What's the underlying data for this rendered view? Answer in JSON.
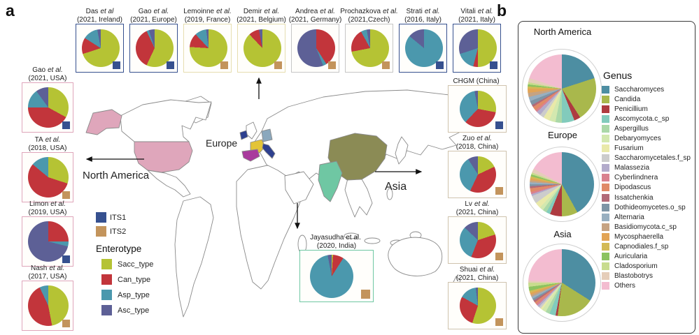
{
  "panels": {
    "a": "a",
    "b": "b"
  },
  "map": {
    "labels": {
      "europe": "Europe",
      "north_america": "North America",
      "asia": "Asia"
    },
    "countries": {
      "outline": "#8a8a8a",
      "usa": "#dfa6bb",
      "alaska": "#dfa6bb",
      "china": "#8b8b55",
      "india": "#6fc7a3",
      "france": "#e3c438",
      "germany": "#8ba8bd",
      "spain": "#a93a9d",
      "italy": "#2e408f",
      "ireland": "#2e408f"
    }
  },
  "legend": {
    "its_items": [
      {
        "label": "ITS1",
        "color": "#36508f"
      },
      {
        "label": "ITS2",
        "color": "#c3945c"
      }
    ],
    "enterotype_title": "Enterotype",
    "enterotype_items": [
      {
        "label": "Sacc_type",
        "color": "#b5c334"
      },
      {
        "label": "Can_type",
        "color": "#c2353b"
      },
      {
        "label": "Asp_type",
        "color": "#4b98ad"
      },
      {
        "label": "Asc_type",
        "color": "#5d6096"
      }
    ]
  },
  "chart_data": {
    "type": "pie",
    "enterotype_categories": [
      "Sacc_type",
      "Can_type",
      "Asp_type",
      "Asc_type"
    ],
    "study_pies": {
      "top": [
        {
          "author": "Das",
          "etal": "et al",
          "detail": "(2021, Ireland)",
          "marker": "ITS1",
          "border": "#36508f",
          "values": [
            70,
            14,
            13,
            3
          ]
        },
        {
          "author": "Gao",
          "etal": "et al.",
          "detail": "(2021, Europe)",
          "marker": "ITS1",
          "border": "#36508f",
          "values": [
            57,
            36,
            2,
            5
          ]
        },
        {
          "author": "Lemoinne",
          "etal": "et al.",
          "detail": "(2019, France)",
          "marker": "ITS2",
          "border": "#e6deb0",
          "values": [
            76,
            12,
            10,
            2
          ]
        },
        {
          "author": "Demir",
          "etal": "et al.",
          "detail": "(2021, Belgium)",
          "marker": "ITS2",
          "border": "#e6deb0",
          "values": [
            88,
            9,
            0,
            3
          ]
        },
        {
          "author": "Andrea",
          "etal": "et al.",
          "detail": "(2021, Germany)",
          "marker": "ITS2",
          "border": "#c6c6c6",
          "values": [
            0,
            41,
            3,
            56
          ]
        },
        {
          "author": "Prochazkova",
          "etal": "et al.",
          "detail": "(2021,Czech)",
          "marker": "ITS2",
          "border": "#c6c6c6",
          "values": [
            72,
            20,
            5,
            3
          ]
        },
        {
          "author": "Strati",
          "etal": "et al.",
          "detail": "(2016, Italy)",
          "marker": "ITS1",
          "border": "#36508f",
          "values": [
            0,
            0,
            86,
            14
          ]
        },
        {
          "author": "Vitali",
          "etal": "et al.",
          "detail": "(2021, Italy)",
          "marker": "ITS1",
          "border": "#36508f",
          "values": [
            50,
            4,
            16,
            30
          ]
        }
      ],
      "left": [
        {
          "author": "Gao",
          "etal": "et al.",
          "detail": "(2021, USA)",
          "marker": "ITS1",
          "border": "#dfa6bb",
          "values": [
            33,
            42,
            15,
            10
          ]
        },
        {
          "author": "TA",
          "etal": "et al.",
          "detail": "(2018, USA)",
          "marker": "ITS2",
          "border": "#dfa6bb",
          "values": [
            30,
            56,
            14,
            0
          ]
        },
        {
          "author": "Limon",
          "etal": "et al.",
          "detail": "(2019, USA)",
          "marker": "ITS1",
          "border": "#dfa6bb",
          "values": [
            0,
            25,
            4,
            71
          ]
        },
        {
          "author": "Nash",
          "etal": "et al.",
          "detail": "(2017, USA)",
          "marker": "ITS2",
          "border": "#dfa6bb",
          "values": [
            47,
            46,
            7,
            0
          ]
        }
      ],
      "right": [
        {
          "author": "CHGM (China)",
          "etal": "",
          "detail": "",
          "marker": "ITS1",
          "border": "#cfc3ae",
          "values": [
            28,
            34,
            35,
            3
          ]
        },
        {
          "author": "Zuo",
          "etal": "et al.",
          "detail": "(2018, China)",
          "marker": "ITS2",
          "border": "#cfc3ae",
          "values": [
            18,
            39,
            34,
            9
          ]
        },
        {
          "author": "Lv",
          "etal": "et al.",
          "detail": "(2021, China)",
          "marker": "ITS2",
          "border": "#cfc3ae",
          "values": [
            20,
            36,
            31,
            13
          ]
        },
        {
          "author": "Shuai",
          "etal": "et al.",
          "detail": "(2021, China)",
          "marker": "ITS2",
          "border": "#cfc3ae",
          "values": [
            55,
            28,
            15,
            2
          ]
        }
      ],
      "india": [
        {
          "author": "Jayasudha et al.",
          "etal": "",
          "detail": "(2020, India)",
          "marker": "ITS2",
          "border": "#6fc7a3",
          "values": [
            1,
            8,
            88,
            3
          ]
        }
      ]
    },
    "genus_legend_title": "Genus",
    "genus_categories": [
      "Saccharomyces",
      "Candida",
      "Penicillium",
      "Ascomycota.c_sp",
      "Aspergillus",
      "Debaryomyces",
      "Fusarium",
      "Saccharomycetales.f_sp",
      "Malassezia",
      "Cyberlindnera",
      "Dipodascus",
      "Issatchenkia",
      "Dothideomycetes.o_sp",
      "Alternaria",
      "Basidiomycota.c_sp",
      "Mycosphaerella",
      "Capnodiales.f_sp",
      "Auricularia",
      "Cladosporium",
      "Blastobotrys",
      "Others"
    ],
    "genus_colors": [
      "#4d8ea2",
      "#a9b84c",
      "#ae3b40",
      "#82cbbc",
      "#abd8a8",
      "#d3e8af",
      "#e9e9a9",
      "#cccccc",
      "#b3abcb",
      "#d9818f",
      "#e08a68",
      "#b26a78",
      "#7e95a6",
      "#98afc0",
      "#c6a382",
      "#e2a455",
      "#d3ba55",
      "#8cc360",
      "#c8dc8e",
      "#e5cdb9",
      "#f3bcd0"
    ],
    "region_pies": [
      {
        "title": "North America",
        "values": [
          20,
          21,
          3,
          6,
          3,
          3,
          3,
          2,
          2,
          1,
          2,
          1,
          2,
          2,
          2,
          2,
          1,
          1,
          1,
          2,
          20
        ]
      },
      {
        "title": "Europe",
        "values": [
          42,
          8,
          6,
          2,
          2,
          2,
          3,
          4,
          1,
          1,
          2,
          1,
          1,
          1,
          1,
          1,
          1,
          1,
          1,
          2,
          17
        ]
      },
      {
        "title": "Asia",
        "values": [
          34,
          18,
          1,
          3,
          2,
          2,
          1,
          1,
          1,
          1,
          1,
          1,
          1,
          1,
          1,
          1,
          1,
          2,
          2,
          1,
          24
        ]
      }
    ]
  }
}
